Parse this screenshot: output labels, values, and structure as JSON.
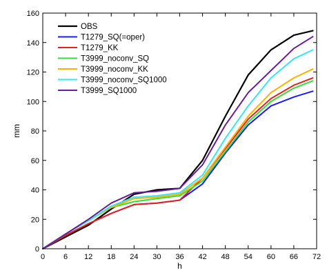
{
  "chart_data": {
    "type": "line",
    "title": "",
    "xlabel": "h",
    "ylabel": "mm",
    "xlim": [
      0,
      72
    ],
    "ylim": [
      0,
      160
    ],
    "xticks": [
      0,
      6,
      12,
      18,
      24,
      30,
      36,
      42,
      48,
      54,
      60,
      66,
      72
    ],
    "yticks": [
      0,
      20,
      40,
      60,
      80,
      100,
      120,
      140,
      160
    ],
    "grid": false,
    "legend_position": "top-left",
    "x": [
      0,
      6,
      12,
      18,
      24,
      30,
      36,
      42,
      48,
      54,
      60,
      66,
      71
    ],
    "series": [
      {
        "name": "OBS",
        "color": "#000000",
        "values": [
          0,
          8,
          16,
          27,
          37,
          40,
          41,
          60,
          90,
          118,
          135,
          145,
          148
        ]
      },
      {
        "name": "T1279_SQ(=oper)",
        "color": "#1a1aff",
        "values": [
          0,
          9,
          17,
          24,
          30,
          31,
          33,
          44,
          65,
          84,
          97,
          103,
          107
        ]
      },
      {
        "name": "T1279_KK",
        "color": "#e8201a",
        "values": [
          0,
          9,
          17,
          24,
          30,
          31,
          33,
          48,
          68,
          88,
          102,
          111,
          116
        ]
      },
      {
        "name": "T3999_noconv_SQ",
        "color": "#33dd33",
        "values": [
          0,
          10,
          19,
          28,
          32,
          34,
          36,
          46,
          66,
          86,
          100,
          109,
          114
        ]
      },
      {
        "name": "T3999_noconv_KK",
        "color": "#ffb000",
        "values": [
          0,
          10,
          19,
          28,
          34,
          35,
          37,
          48,
          69,
          90,
          106,
          116,
          122
        ]
      },
      {
        "name": "T3999_noconv_SQ1000",
        "color": "#33e6f2",
        "values": [
          0,
          10,
          19,
          29,
          35,
          36,
          38,
          50,
          75,
          97,
          116,
          129,
          135
        ]
      },
      {
        "name": "T3999_SQ1000",
        "color": "#6a1a9a",
        "values": [
          0,
          10,
          20,
          31,
          38,
          39,
          41,
          57,
          84,
          106,
          121,
          136,
          144
        ]
      }
    ]
  }
}
